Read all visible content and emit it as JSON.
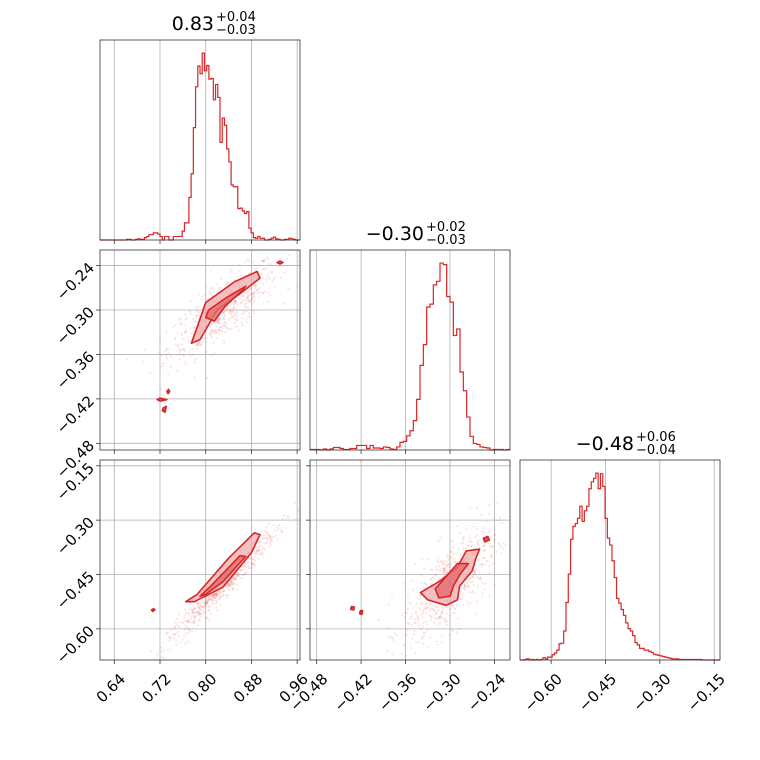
{
  "colors": {
    "series": "#d62728",
    "fill_light": "#f0a8aa",
    "fill_mid": "#e46a6d",
    "grid": "#b0b0b0"
  },
  "titles": [
    {
      "main": "0.83",
      "sup": "+0.04",
      "sub": "−0.03"
    },
    {
      "main": "−0.30",
      "sup": "+0.02",
      "sub": "−0.03"
    },
    {
      "main": "−0.48",
      "sup": "+0.06",
      "sub": "−0.04"
    }
  ],
  "chart_data": {
    "type": "corner",
    "grid": true,
    "parameters": [
      {
        "range": [
          0.615,
          0.965
        ],
        "ticks": [
          0.64,
          0.72,
          0.8,
          0.88,
          0.96
        ],
        "tick_labels": [
          "0.64",
          "0.72",
          "0.80",
          "0.88",
          "0.96"
        ]
      },
      {
        "range": [
          -0.489,
          -0.219
        ],
        "ticks": [
          -0.48,
          -0.42,
          -0.36,
          -0.3,
          -0.24
        ],
        "tick_labels": [
          "−0.48",
          "−0.42",
          "−0.36",
          "−0.30",
          "−0.24"
        ]
      },
      {
        "range": [
          -0.686,
          -0.134
        ],
        "ticks": [
          -0.6,
          -0.45,
          -0.3,
          -0.15
        ],
        "tick_labels": [
          "−0.60",
          "−0.45",
          "−0.30",
          "−0.15"
        ]
      }
    ],
    "histograms": [
      {
        "param": 0,
        "bin_lo": 0.615,
        "bin_hi": 0.965,
        "counts": [
          0,
          0,
          0,
          0,
          0,
          0,
          0,
          0,
          0,
          0,
          0,
          0,
          1,
          1,
          0,
          0,
          1,
          2,
          1,
          1,
          4,
          6,
          9,
          9,
          12,
          12,
          10,
          6,
          0,
          6,
          6,
          0,
          0,
          6,
          6,
          6,
          6,
          15,
          29,
          29,
          72,
          112,
          190,
          259,
          294,
          281,
          316,
          286,
          295,
          272,
          273,
          237,
          263,
          241,
          165,
          206,
          194,
          154,
          132,
          93,
          90,
          90,
          53,
          54,
          49,
          45,
          48,
          20,
          12,
          4,
          3,
          6,
          3,
          3,
          0,
          0,
          1,
          3,
          5,
          2,
          1,
          0,
          0,
          1,
          1,
          3,
          2,
          1,
          0,
          0
        ]
      },
      {
        "param": 1,
        "bin_lo": -0.489,
        "bin_hi": -0.219,
        "counts": [
          1,
          1,
          1,
          0,
          2,
          0,
          2,
          5,
          5,
          3,
          1,
          1,
          3,
          3,
          9,
          9,
          9,
          3,
          9,
          4,
          4,
          3,
          6,
          5,
          2,
          1,
          6,
          15,
          17,
          28,
          38,
          58,
          100,
          167,
          208,
          282,
          288,
          326,
          333,
          369,
          366,
          303,
          292,
          226,
          239,
          154,
          117,
          65,
          27,
          13,
          11,
          6,
          5,
          4,
          0,
          1,
          1,
          1,
          0,
          1
        ]
      },
      {
        "param": 2,
        "bin_lo": -0.686,
        "bin_hi": -0.134,
        "counts": [
          0,
          0,
          1,
          2,
          0,
          1,
          0,
          1,
          0,
          1,
          4,
          2,
          5,
          5,
          9,
          12,
          17,
          28,
          29,
          50,
          99,
          148,
          208,
          230,
          235,
          244,
          265,
          239,
          257,
          265,
          295,
          307,
          313,
          322,
          295,
          321,
          299,
          244,
          210,
          198,
          171,
          142,
          106,
          98,
          87,
          77,
          64,
          54,
          50,
          42,
          30,
          26,
          20,
          20,
          17,
          17,
          15,
          13,
          10,
          9,
          8,
          7,
          6,
          5,
          4,
          3,
          2,
          2,
          2,
          1,
          1,
          1,
          1,
          1,
          1,
          1,
          1,
          1,
          1,
          0,
          0,
          0,
          0,
          0,
          0,
          0,
          0
        ]
      }
    ],
    "scatter_clouds": [
      {
        "x_param": 0,
        "y_param": 1,
        "corr": 0.8,
        "n": 600,
        "center": [
          0.83,
          -0.3
        ],
        "sd": [
          0.03,
          0.02
        ]
      },
      {
        "x_param": 0,
        "y_param": 2,
        "corr": 0.97,
        "n": 600,
        "center": [
          0.83,
          -0.48
        ],
        "sd": [
          0.03,
          0.05
        ]
      },
      {
        "x_param": 1,
        "y_param": 2,
        "corr": 0.7,
        "n": 600,
        "center": [
          -0.3,
          -0.48
        ],
        "sd": [
          0.02,
          0.05
        ]
      }
    ],
    "contours": {
      "0_1": [
        [
          [
            0.82,
            -0.3
          ],
          [
            0.86,
            -0.278
          ],
          [
            0.895,
            -0.257
          ],
          [
            0.89,
            -0.248
          ],
          [
            0.85,
            -0.262
          ],
          [
            0.8,
            -0.29
          ],
          [
            0.782,
            -0.33
          ],
          [
            0.775,
            -0.345
          ],
          [
            0.79,
            -0.34
          ]
        ],
        [
          [
            0.835,
            -0.294
          ],
          [
            0.865,
            -0.273
          ],
          [
            0.87,
            -0.268
          ],
          [
            0.835,
            -0.284
          ],
          [
            0.805,
            -0.3
          ],
          [
            0.8,
            -0.31
          ],
          [
            0.815,
            -0.315
          ]
        ],
        [
          [
            0.93,
            -0.238
          ],
          [
            0.935,
            -0.236
          ],
          [
            0.93,
            -0.234
          ],
          [
            0.925,
            -0.236
          ]
        ],
        [
          [
            0.734,
            -0.413
          ],
          [
            0.737,
            -0.41
          ],
          [
            0.735,
            -0.407
          ],
          [
            0.732,
            -0.41
          ]
        ],
        [
          [
            0.72,
            -0.419
          ],
          [
            0.732,
            -0.421
          ],
          [
            0.72,
            -0.423
          ],
          [
            0.715,
            -0.421
          ]
        ],
        [
          [
            0.726,
            -0.432
          ],
          [
            0.731,
            -0.43
          ],
          [
            0.729,
            -0.438
          ],
          [
            0.724,
            -0.436
          ]
        ]
      ],
      "0_2": [
        [
          [
            0.83,
            -0.485
          ],
          [
            0.88,
            -0.39
          ],
          [
            0.895,
            -0.34
          ],
          [
            0.885,
            -0.335
          ],
          [
            0.84,
            -0.405
          ],
          [
            0.785,
            -0.505
          ],
          [
            0.765,
            -0.525
          ],
          [
            0.78,
            -0.525
          ]
        ],
        [
          [
            0.83,
            -0.47
          ],
          [
            0.87,
            -0.4
          ],
          [
            0.86,
            -0.398
          ],
          [
            0.81,
            -0.48
          ],
          [
            0.79,
            -0.51
          ],
          [
            0.8,
            -0.505
          ]
        ],
        [
          [
            0.707,
            -0.552
          ],
          [
            0.711,
            -0.548
          ],
          [
            0.709,
            -0.544
          ],
          [
            0.705,
            -0.548
          ]
        ]
      ],
      "1_2": [
        [
          [
            -0.287,
            -0.482
          ],
          [
            -0.27,
            -0.44
          ],
          [
            -0.265,
            -0.405
          ],
          [
            -0.26,
            -0.38
          ],
          [
            -0.278,
            -0.385
          ],
          [
            -0.29,
            -0.43
          ],
          [
            -0.315,
            -0.47
          ],
          [
            -0.34,
            -0.5
          ],
          [
            -0.33,
            -0.52
          ],
          [
            -0.305,
            -0.535
          ],
          [
            -0.29,
            -0.52
          ]
        ],
        [
          [
            -0.295,
            -0.48
          ],
          [
            -0.285,
            -0.445
          ],
          [
            -0.275,
            -0.42
          ],
          [
            -0.29,
            -0.42
          ],
          [
            -0.305,
            -0.455
          ],
          [
            -0.32,
            -0.49
          ],
          [
            -0.315,
            -0.515
          ],
          [
            -0.3,
            -0.51
          ]
        ],
        [
          [
            -0.253,
            -0.36
          ],
          [
            -0.247,
            -0.355
          ],
          [
            -0.249,
            -0.345
          ],
          [
            -0.255,
            -0.35
          ]
        ],
        [
          [
            -0.433,
            -0.538
          ],
          [
            -0.429,
            -0.54
          ],
          [
            -0.43,
            -0.548
          ],
          [
            -0.434,
            -0.546
          ]
        ],
        [
          [
            -0.421,
            -0.55
          ],
          [
            -0.418,
            -0.55
          ],
          [
            -0.419,
            -0.56
          ],
          [
            -0.422,
            -0.558
          ]
        ]
      ]
    }
  }
}
